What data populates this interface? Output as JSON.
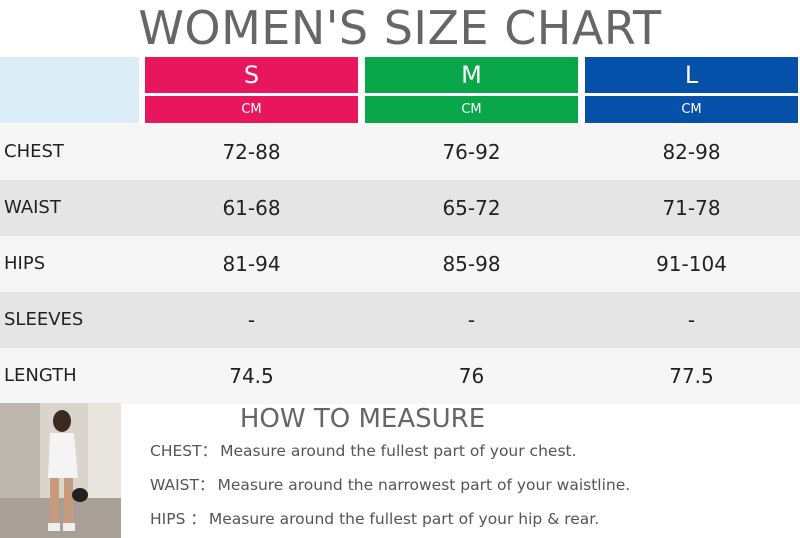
{
  "header": {
    "title": "WOMEN'S SIZE CHART"
  },
  "table": {
    "columns": [
      {
        "size": "S",
        "unit": "CM"
      },
      {
        "size": "M",
        "unit": "CM"
      },
      {
        "size": "L",
        "unit": "CM"
      }
    ],
    "rows": [
      {
        "label": "CHEST",
        "values": [
          "72-88",
          "76-92",
          "82-98"
        ]
      },
      {
        "label": "WAIST",
        "values": [
          "61-68",
          "65-72",
          "71-78"
        ]
      },
      {
        "label": "HIPS",
        "values": [
          "81-94",
          "85-98",
          "91-104"
        ]
      },
      {
        "label": "SLEEVES",
        "values": [
          "-",
          "-",
          "-"
        ]
      },
      {
        "label": "LENGTH",
        "values": [
          "74.5",
          "76",
          "77.5"
        ]
      }
    ]
  },
  "measure": {
    "title": "HOW TO MEASURE",
    "items": [
      {
        "label": "CHEST：",
        "text": "Measure around the fullest part of your chest."
      },
      {
        "label": "WAIST：",
        "text": "Measure around the narrowest part of your waistline."
      },
      {
        "label": "HIPS ：",
        "text": "Measure around the fullest part of your hip & rear."
      }
    ]
  }
}
